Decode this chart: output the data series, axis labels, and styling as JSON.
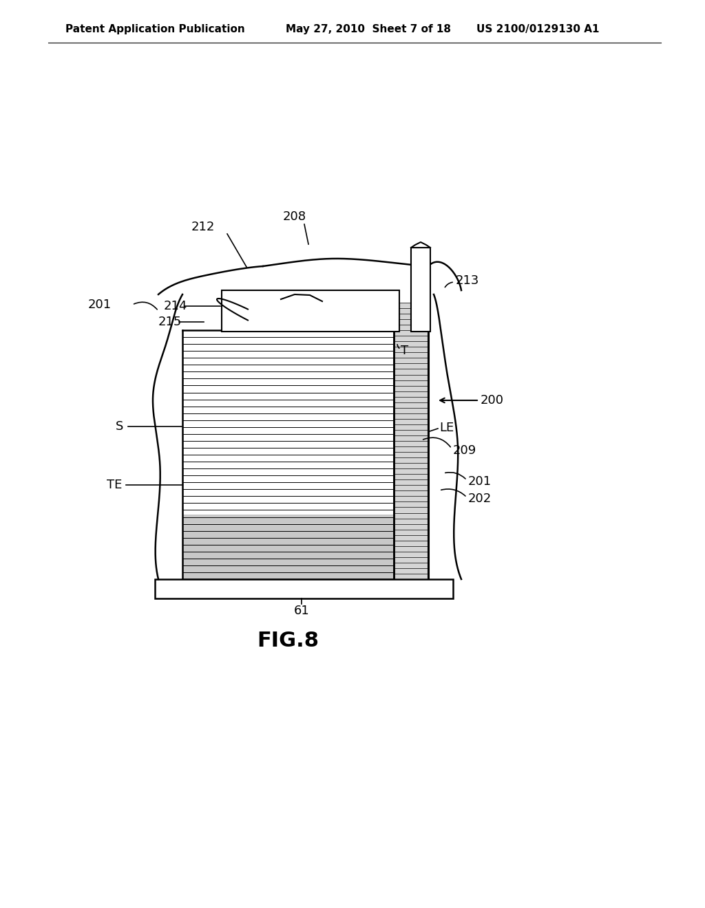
{
  "bg_color": "#ffffff",
  "header_left": "Patent Application Publication",
  "header_mid": "May 27, 2010  Sheet 7 of 18",
  "header_right": "US 2100/0129130 A1",
  "fig_label": "FIG.8",
  "line_color": "#000000",
  "label_fontsize": 13,
  "header_fontsize": 11,
  "figlabel_fontsize": 22
}
